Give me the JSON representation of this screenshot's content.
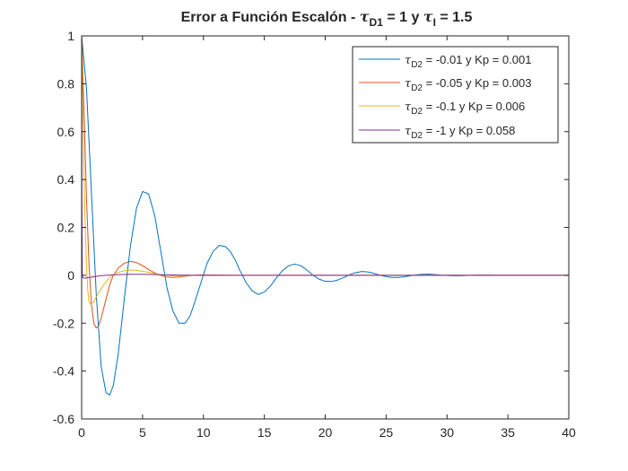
{
  "chart_data": {
    "type": "line",
    "title": {
      "main": "Error a Función Escalón - ",
      "tau_symbol": "τ",
      "sub_1": "D1",
      "mid": " = 1 y ",
      "sub_2": "I",
      "end": " = 1.5"
    },
    "xlabel": "",
    "ylabel": "",
    "xlim": [
      0,
      40
    ],
    "ylim": [
      -0.6,
      1
    ],
    "xticks": [
      0,
      5,
      10,
      15,
      20,
      25,
      30,
      35,
      40
    ],
    "yticks": [
      -0.6,
      -0.4,
      -0.2,
      0,
      0.2,
      0.4,
      0.6,
      0.8,
      1
    ],
    "legend_position": "top-right",
    "grid": false,
    "series": [
      {
        "name": "τD2 = -0.01 y Kp = 0.001",
        "legend": {
          "symbol": "τ",
          "sub": "D2",
          "text": " = -0.01 y Kp = 0.001"
        },
        "color": "#0072BD",
        "x": [
          0,
          0.4,
          0.8,
          1.2,
          1.6,
          2.0,
          2.3,
          2.6,
          3.0,
          3.5,
          4.0,
          4.5,
          5.0,
          5.5,
          6.0,
          6.5,
          7.0,
          7.5,
          8.0,
          8.5,
          8.9,
          9.3,
          9.8,
          10.3,
          10.8,
          11.3,
          11.8,
          12.2,
          12.6,
          13.0,
          13.5,
          14.0,
          14.5,
          15.0,
          15.5,
          16.0,
          16.5,
          17.0,
          17.5,
          18.0,
          18.5,
          19.0,
          19.5,
          20.0,
          20.5,
          21.0,
          21.5,
          22.0,
          22.4,
          23.0,
          23.5,
          24.0,
          24.5,
          25.0,
          25.5,
          26.0,
          26.5,
          27.0,
          27.5,
          28.0,
          28.5,
          29.0,
          29.5,
          30.0,
          30.5,
          31.0,
          31.5,
          32.0,
          32.5,
          33.0,
          33.5,
          34.0,
          34.5,
          35.0,
          35.5,
          36.0,
          36.5,
          37.0,
          37.5,
          38.0,
          38.5,
          39.0,
          39.5,
          40.0
        ],
        "values": [
          1,
          0.78,
          0.35,
          -0.08,
          -0.38,
          -0.49,
          -0.5,
          -0.46,
          -0.33,
          -0.1,
          0.12,
          0.28,
          0.35,
          0.34,
          0.25,
          0.1,
          -0.05,
          -0.15,
          -0.2,
          -0.2,
          -0.17,
          -0.11,
          -0.03,
          0.05,
          0.1,
          0.125,
          0.12,
          0.1,
          0.065,
          0.02,
          -0.03,
          -0.065,
          -0.08,
          -0.07,
          -0.045,
          -0.01,
          0.02,
          0.04,
          0.047,
          0.04,
          0.022,
          0,
          -0.016,
          -0.025,
          -0.026,
          -0.02,
          -0.01,
          0.002,
          0.01,
          0.016,
          0.014,
          0.008,
          0,
          -0.005,
          -0.009,
          -0.009,
          -0.006,
          -0.002,
          0.002,
          0.004,
          0.005,
          0.003,
          0.001,
          -0.001,
          -0.002,
          -0.002,
          -0.001,
          0,
          0.001,
          0.001,
          0.001,
          0,
          0,
          0,
          0,
          0,
          0,
          0,
          0,
          0,
          0,
          0,
          0,
          0
        ]
      },
      {
        "name": "τD2 = -0.05 y Kp = 0.003",
        "legend": {
          "symbol": "τ",
          "sub": "D2",
          "text": " = -0.05 y Kp = 0.003"
        },
        "color": "#D95319",
        "x": [
          0,
          0.2,
          0.4,
          0.6,
          0.8,
          1.0,
          1.2,
          1.4,
          1.6,
          1.8,
          2.0,
          2.3,
          2.6,
          3.0,
          3.5,
          4.0,
          4.4,
          4.8,
          5.2,
          5.6,
          6.0,
          6.5,
          7.0,
          7.5,
          8.0,
          8.5,
          9.0,
          9.5,
          10.0,
          11.0,
          12.0,
          14.0,
          20.0,
          30.0,
          40.0
        ],
        "values": [
          1,
          0.68,
          0.32,
          0.05,
          -0.12,
          -0.2,
          -0.22,
          -0.21,
          -0.18,
          -0.14,
          -0.1,
          -0.04,
          0.0,
          0.03,
          0.05,
          0.058,
          0.055,
          0.046,
          0.034,
          0.021,
          0.01,
          0.0,
          -0.007,
          -0.009,
          -0.007,
          -0.004,
          -0.001,
          0.001,
          0.002,
          0.001,
          0,
          0,
          0,
          0,
          0
        ]
      },
      {
        "name": "τD2 = -0.1 y Kp = 0.006",
        "legend": {
          "symbol": "τ",
          "sub": "D2",
          "text": " = -0.1 y Kp = 0.006"
        },
        "color": "#EDB120",
        "x": [
          0,
          0.1,
          0.2,
          0.3,
          0.4,
          0.5,
          0.6,
          0.7,
          0.8,
          1.0,
          1.2,
          1.5,
          1.8,
          2.2,
          2.6,
          3.0,
          3.5,
          4.0,
          4.5,
          5.0,
          5.5,
          6.0,
          6.5,
          7.0,
          7.5,
          8.0,
          9.0,
          10.0,
          12.0,
          20.0,
          30.0,
          40.0
        ],
        "values": [
          1,
          0.7,
          0.42,
          0.2,
          0.04,
          -0.06,
          -0.11,
          -0.12,
          -0.12,
          -0.11,
          -0.09,
          -0.065,
          -0.04,
          -0.015,
          0.002,
          0.012,
          0.019,
          0.022,
          0.021,
          0.017,
          0.012,
          0.007,
          0.003,
          0.0,
          -0.002,
          -0.002,
          -0.001,
          0,
          0,
          0,
          0,
          0
        ]
      },
      {
        "name": "τD2 = -1 y Kp = 0.058",
        "legend": {
          "symbol": "τ",
          "sub": "D2",
          "text": " = -1 y Kp = 0.058"
        },
        "color": "#7E2F8E",
        "x": [
          0,
          0.02,
          0.05,
          0.1,
          0.2,
          0.5,
          1.0,
          1.5,
          2.0,
          3.0,
          4.0,
          5.0,
          6.0,
          7.0,
          8.0,
          10.0,
          12.0,
          20.0,
          30.0,
          40.0
        ],
        "values": [
          1,
          0.3,
          0.0,
          -0.01,
          -0.012,
          -0.01,
          -0.006,
          -0.002,
          0.0,
          0.003,
          0.004,
          0.004,
          0.003,
          0.002,
          0.001,
          0.0,
          0,
          0,
          0,
          0
        ]
      }
    ]
  }
}
